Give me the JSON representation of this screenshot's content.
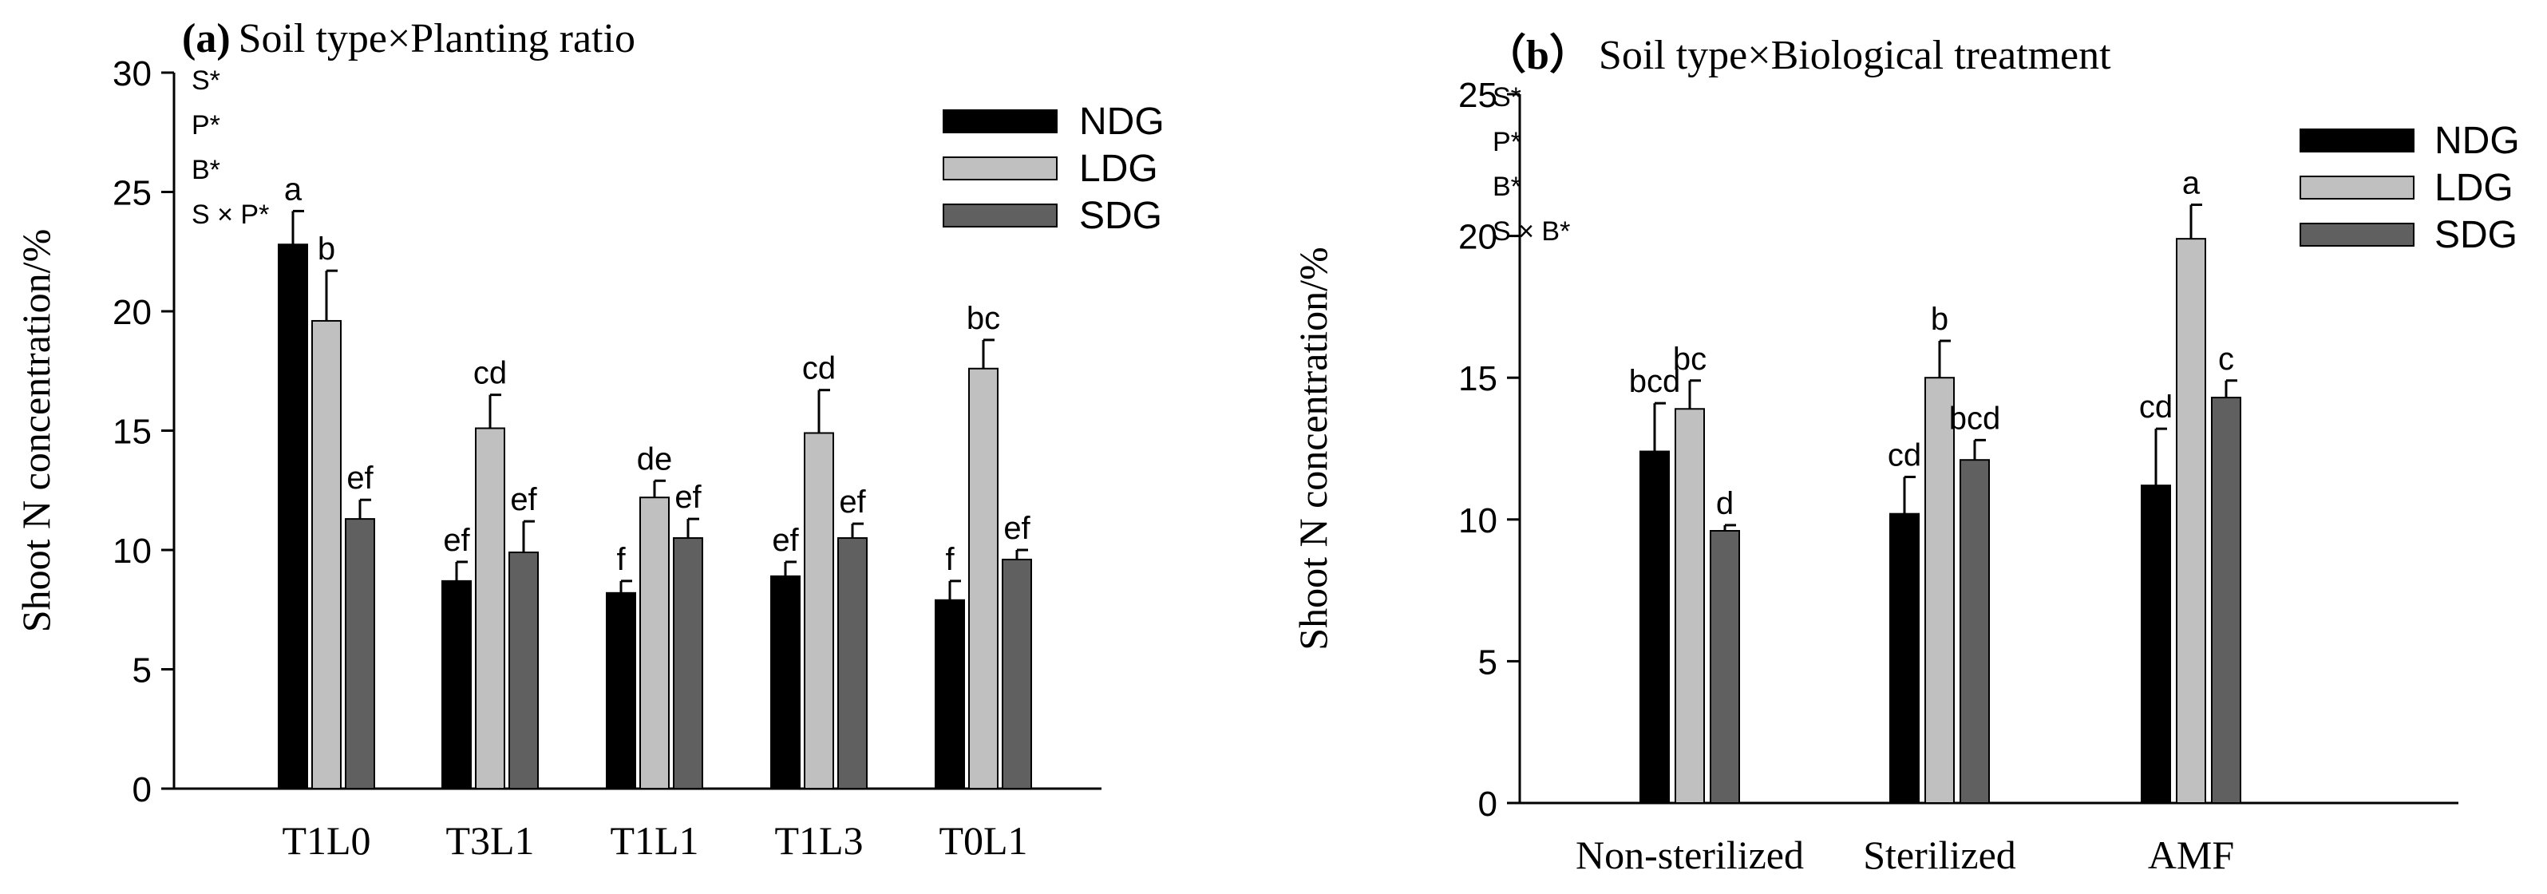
{
  "chart_data": [
    {
      "type": "bar",
      "panel_label": "(a)",
      "title": "Soil type×Planting ratio",
      "xlabel": "",
      "ylabel": "Shoot N concentration/%",
      "ylim": [
        0,
        30
      ],
      "yticks": [
        0,
        5,
        10,
        15,
        20,
        25,
        30
      ],
      "categories": [
        "T1L0",
        "T3L1",
        "T1L1",
        "T1L3",
        "T0L1"
      ],
      "series": [
        {
          "name": "NDG",
          "color": "#000000",
          "values": [
            22.8,
            8.7,
            8.2,
            8.9,
            7.9
          ],
          "errors": [
            1.4,
            0.8,
            0.5,
            0.6,
            0.8
          ],
          "letters": [
            "a",
            "ef",
            "f",
            "ef",
            "f"
          ]
        },
        {
          "name": "LDG",
          "color": "#c0c0c0",
          "values": [
            19.6,
            15.1,
            12.2,
            14.9,
            17.6
          ],
          "errors": [
            2.1,
            1.4,
            0.7,
            1.8,
            1.2
          ],
          "letters": [
            "b",
            "cd",
            "de",
            "cd",
            "bc"
          ]
        },
        {
          "name": "SDG",
          "color": "#606060",
          "values": [
            11.3,
            9.9,
            10.5,
            10.5,
            9.6
          ],
          "errors": [
            0.8,
            1.3,
            0.8,
            0.6,
            0.4
          ],
          "letters": [
            "ef",
            "ef",
            "ef",
            "ef",
            "ef"
          ]
        }
      ],
      "legend_position": "top-right",
      "annotations": [
        "S*",
        "P*",
        "B*",
        "S × P*"
      ]
    },
    {
      "type": "bar",
      "panel_label": "（b）",
      "title": "Soil type×Biological treatment",
      "xlabel": "",
      "ylabel": "Shoot N concentration/%",
      "ylim": [
        0,
        25
      ],
      "yticks": [
        0,
        5,
        10,
        15,
        20,
        25
      ],
      "categories": [
        "Non-sterilized",
        "Sterilized",
        "AMF"
      ],
      "series": [
        {
          "name": "NDG",
          "color": "#000000",
          "values": [
            12.4,
            10.2,
            11.2
          ],
          "errors": [
            1.7,
            1.3,
            2.0
          ],
          "letters": [
            "bcd",
            "cd",
            "cd"
          ]
        },
        {
          "name": "LDG",
          "color": "#c0c0c0",
          "values": [
            13.9,
            15.0,
            19.9
          ],
          "errors": [
            1.0,
            1.3,
            1.2
          ],
          "letters": [
            "bc",
            "b",
            "a"
          ]
        },
        {
          "name": "SDG",
          "color": "#606060",
          "values": [
            9.6,
            12.1,
            14.3
          ],
          "errors": [
            0.2,
            0.7,
            0.6
          ],
          "letters": [
            "d",
            "bcd",
            "c"
          ]
        }
      ],
      "legend_position": "top-right",
      "annotations": [
        "S*",
        "P*",
        "B*",
        "S × B*"
      ]
    }
  ]
}
